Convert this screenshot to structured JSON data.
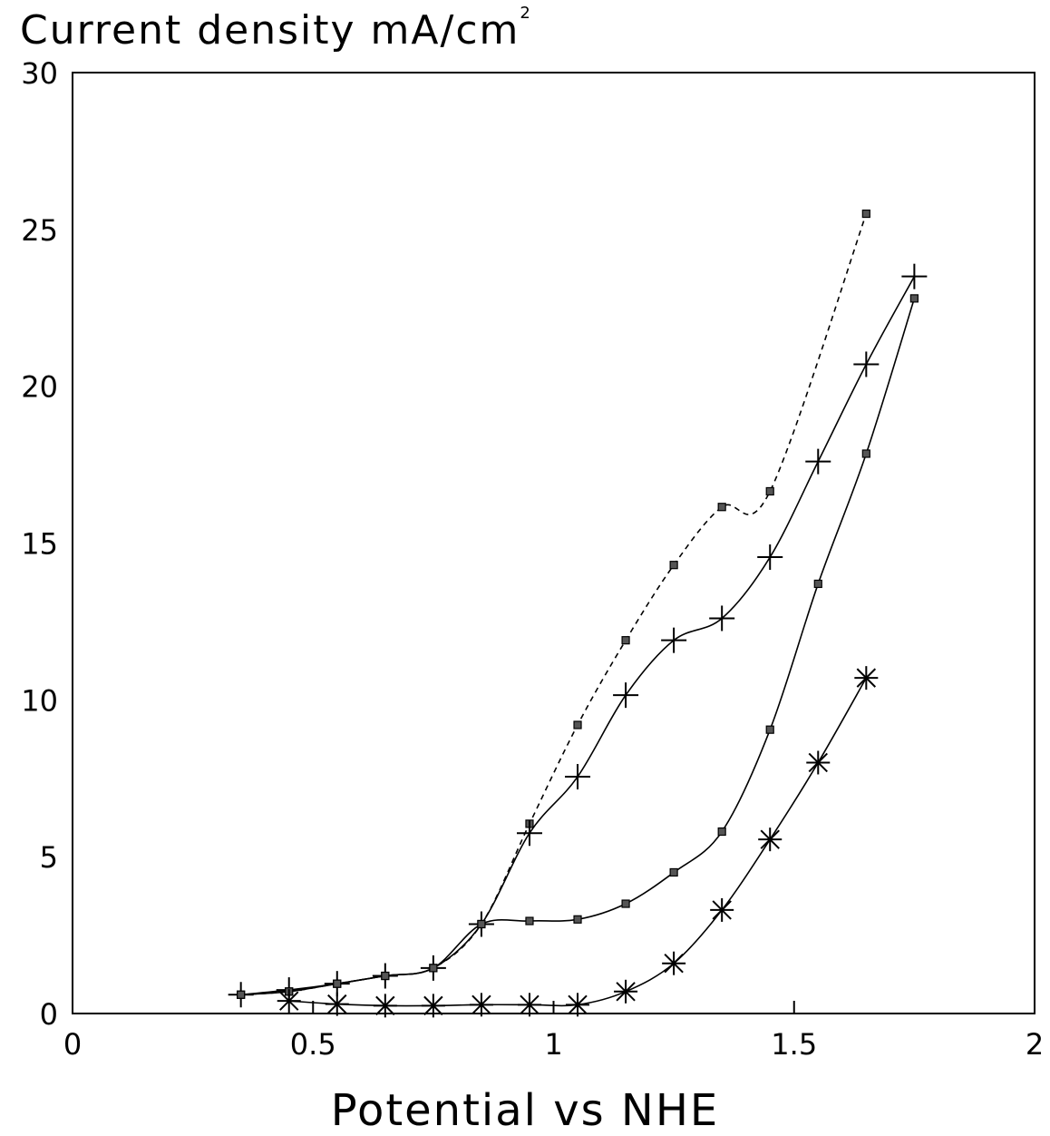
{
  "chart_data": {
    "type": "line",
    "ylabel_main": "Current density mA/cm",
    "ylabel_sup": "2",
    "xlabel": "Potential vs NHE",
    "xlim": [
      0,
      2
    ],
    "ylim": [
      0,
      30
    ],
    "xticks": [
      {
        "value": 0,
        "label": "0"
      },
      {
        "value": 0.5,
        "label": "0.5"
      },
      {
        "value": 1,
        "label": "1"
      },
      {
        "value": 1.5,
        "label": "1.5"
      },
      {
        "value": 2,
        "label": "2"
      }
    ],
    "yticks": [
      {
        "value": 0,
        "label": "0"
      },
      {
        "value": 5,
        "label": "5"
      },
      {
        "value": 10,
        "label": "10"
      },
      {
        "value": 15,
        "label": "15"
      },
      {
        "value": 20,
        "label": "20"
      },
      {
        "value": 25,
        "label": "25"
      },
      {
        "value": 30,
        "label": "30"
      }
    ],
    "grid": false,
    "legend": "none",
    "series": [
      {
        "marker": "square",
        "line": "dashed",
        "x": [
          0.35,
          0.45,
          0.55,
          0.65,
          0.75,
          0.85,
          0.95,
          1.05,
          1.15,
          1.25,
          1.35,
          1.45,
          1.65
        ],
        "y": [
          0.6,
          0.7,
          0.95,
          1.2,
          1.45,
          2.85,
          6.05,
          9.2,
          11.9,
          14.3,
          16.15,
          16.65,
          25.5
        ]
      },
      {
        "marker": "plus",
        "line": "solid",
        "x": [
          0.35,
          0.45,
          0.55,
          0.65,
          0.75,
          0.85,
          0.95,
          1.05,
          1.15,
          1.25,
          1.35,
          1.45,
          1.55,
          1.65,
          1.75
        ],
        "y": [
          0.6,
          0.75,
          0.95,
          1.2,
          1.45,
          2.85,
          5.75,
          7.55,
          10.15,
          11.9,
          12.6,
          14.55,
          17.6,
          20.7,
          23.5
        ]
      },
      {
        "marker": "square",
        "line": "solid",
        "x": [
          0.35,
          0.45,
          0.55,
          0.65,
          0.75,
          0.85,
          0.95,
          1.05,
          1.15,
          1.25,
          1.35,
          1.45,
          1.55,
          1.65,
          1.75
        ],
        "y": [
          0.6,
          0.7,
          0.95,
          1.2,
          1.45,
          2.85,
          2.95,
          3.0,
          3.5,
          4.5,
          5.8,
          9.05,
          13.7,
          17.85,
          22.8
        ]
      },
      {
        "marker": "asterisk",
        "line": "solid",
        "x": [
          0.45,
          0.55,
          0.65,
          0.75,
          0.85,
          0.95,
          1.05,
          1.15,
          1.25,
          1.35,
          1.45,
          1.55,
          1.65
        ],
        "y": [
          0.4,
          0.3,
          0.25,
          0.25,
          0.28,
          0.28,
          0.28,
          0.7,
          1.6,
          3.3,
          5.55,
          8.0,
          10.7
        ]
      }
    ]
  }
}
